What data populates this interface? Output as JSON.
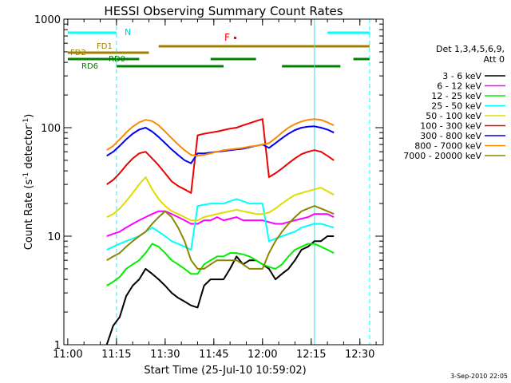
{
  "figure": {
    "title": "HESSI Observing Summary Count Rates",
    "xlabel": "Start Time (25-Jul-10 10:59:02)",
    "ylabel_main": "Count Rate (s",
    "ylabel_sup1": "-1",
    "ylabel_mid": " detector",
    "ylabel_sup2": "-1",
    "ylabel_end": ")",
    "footer_date": "3-Sep-2010 22:05",
    "legend_header_1": "Det 1,3,4,5,6,9,",
    "legend_header_2": "Att 0"
  },
  "flags": {
    "night_label": "N",
    "flare_label": "F",
    "fd1_label": "FD1",
    "fd2_label": "FD2",
    "rd0_label": "RD0",
    "rd6_label": "RD6"
  },
  "chart_data": {
    "type": "line",
    "title": "HESSI Observing Summary Count Rates",
    "xlabel": "Start Time (25-Jul-10 10:59:02)",
    "ylabel": "Count Rate (s-1 detector-1)",
    "y_scale": "log",
    "xlim_minutes": [
      10.98,
      12.62
    ],
    "ylim": [
      1,
      1000
    ],
    "x_ticks": [
      {
        "t": 11.0,
        "label": "11:00"
      },
      {
        "t": 11.25,
        "label": "11:15"
      },
      {
        "t": 11.5,
        "label": "11:30"
      },
      {
        "t": 11.75,
        "label": "11:45"
      },
      {
        "t": 12.0,
        "label": "12:00"
      },
      {
        "t": 12.25,
        "label": "12:15"
      },
      {
        "t": 12.5,
        "label": "12:30"
      }
    ],
    "y_ticks": [
      {
        "v": 1,
        "label": "1"
      },
      {
        "v": 10,
        "label": "10"
      },
      {
        "v": 100,
        "label": "100"
      },
      {
        "v": 1000,
        "label": "1000"
      }
    ],
    "grid": false,
    "legend_position": "right",
    "series": [
      {
        "name": "3 - 6 keV",
        "color": "#000000",
        "x": [
          "11:12",
          "11:14",
          "11:16",
          "11:18",
          "11:20",
          "11:22",
          "11:24",
          "11:26",
          "11:28",
          "11:30",
          "11:32",
          "11:34",
          "11:36",
          "11:38",
          "11:40",
          "11:42",
          "11:44",
          "11:46",
          "11:48",
          "11:50",
          "11:52",
          "11:54",
          "11:56",
          "11:58",
          "12:00",
          "12:02",
          "12:04",
          "12:06",
          "12:08",
          "12:10",
          "12:12",
          "12:14",
          "12:16",
          "12:18",
          "12:20",
          "12:22"
        ],
        "y": [
          1.0,
          1.5,
          1.8,
          2.8,
          3.5,
          4.0,
          5.0,
          4.5,
          4.0,
          3.5,
          3.0,
          2.7,
          2.5,
          2.3,
          2.2,
          3.5,
          4.0,
          4.0,
          4.0,
          5.0,
          6.5,
          5.5,
          6.0,
          6.0,
          5.5,
          5.0,
          4.0,
          4.5,
          5.0,
          6.0,
          7.5,
          8.0,
          9.0,
          9.0,
          10.0,
          10.0
        ]
      },
      {
        "name": "6 - 12 keV",
        "color": "#ff00ff",
        "x": [
          "11:12",
          "11:14",
          "11:16",
          "11:18",
          "11:20",
          "11:22",
          "11:24",
          "11:26",
          "11:28",
          "11:30",
          "11:32",
          "11:34",
          "11:36",
          "11:38",
          "11:40",
          "11:42",
          "11:44",
          "11:46",
          "11:48",
          "11:50",
          "11:52",
          "11:54",
          "11:56",
          "11:58",
          "12:00",
          "12:02",
          "12:04",
          "12:06",
          "12:08",
          "12:10",
          "12:12",
          "12:14",
          "12:16",
          "12:18",
          "12:20",
          "12:22"
        ],
        "y": [
          10.0,
          10.5,
          11.0,
          12.0,
          13.0,
          14.0,
          15.0,
          16.0,
          17.0,
          17.0,
          16.0,
          15.0,
          14.0,
          13.0,
          13.0,
          14.0,
          14.0,
          15.0,
          14.0,
          14.5,
          15.0,
          14.0,
          14.0,
          14.0,
          14.0,
          13.5,
          13.0,
          13.0,
          13.5,
          14.0,
          14.5,
          15.0,
          16.0,
          16.0,
          16.0,
          15.0
        ]
      },
      {
        "name": "12 - 25 keV",
        "color": "#00ee00",
        "x": [
          "11:12",
          "11:14",
          "11:16",
          "11:18",
          "11:20",
          "11:22",
          "11:24",
          "11:26",
          "11:28",
          "11:30",
          "11:32",
          "11:34",
          "11:36",
          "11:38",
          "11:40",
          "11:42",
          "11:44",
          "11:46",
          "11:48",
          "11:50",
          "11:52",
          "11:54",
          "11:56",
          "11:58",
          "12:00",
          "12:02",
          "12:04",
          "12:06",
          "12:08",
          "12:10",
          "12:12",
          "12:14",
          "12:16",
          "12:18",
          "12:20",
          "12:22"
        ],
        "y": [
          3.5,
          3.8,
          4.2,
          5.0,
          5.5,
          6.0,
          7.0,
          8.5,
          8.0,
          7.0,
          6.0,
          5.5,
          5.0,
          4.5,
          4.5,
          5.5,
          6.0,
          6.5,
          6.5,
          7.0,
          7.0,
          6.8,
          6.5,
          6.0,
          5.5,
          5.2,
          5.0,
          5.5,
          6.5,
          7.5,
          8.0,
          8.5,
          8.5,
          8.0,
          7.5,
          7.0
        ]
      },
      {
        "name": "25 - 50 keV",
        "color": "#00ffff",
        "x": [
          "11:12",
          "11:14",
          "11:16",
          "11:18",
          "11:20",
          "11:22",
          "11:24",
          "11:26",
          "11:28",
          "11:30",
          "11:32",
          "11:34",
          "11:36",
          "11:38",
          "11:40",
          "11:42",
          "11:44",
          "11:46",
          "11:48",
          "11:50",
          "11:52",
          "11:54",
          "11:56",
          "11:58",
          "12:00",
          "12:02",
          "12:04",
          "12:06",
          "12:08",
          "12:10",
          "12:12",
          "12:14",
          "12:16",
          "12:18",
          "12:20",
          "12:22"
        ],
        "y": [
          7.5,
          8.0,
          8.5,
          9.0,
          9.5,
          10.0,
          11.0,
          12.0,
          11.0,
          10.0,
          9.0,
          8.5,
          8.0,
          7.5,
          19.0,
          19.5,
          20.0,
          20.0,
          20.0,
          21.0,
          22.0,
          21.0,
          20.0,
          20.0,
          20.0,
          9.0,
          9.5,
          10.0,
          10.5,
          11.0,
          12.0,
          12.5,
          13.0,
          13.0,
          12.5,
          12.0
        ]
      },
      {
        "name": "50 - 100 keV",
        "color": "#dddd00",
        "x": [
          "11:12",
          "11:14",
          "11:16",
          "11:18",
          "11:20",
          "11:22",
          "11:24",
          "11:26",
          "11:28",
          "11:30",
          "11:32",
          "11:34",
          "11:36",
          "11:38",
          "11:40",
          "11:42",
          "11:44",
          "11:46",
          "11:48",
          "11:50",
          "11:52",
          "11:54",
          "11:56",
          "11:58",
          "12:00",
          "12:02",
          "12:04",
          "12:06",
          "12:08",
          "12:10",
          "12:12",
          "12:14",
          "12:16",
          "12:18",
          "12:20",
          "12:22"
        ],
        "y": [
          15.0,
          16.0,
          18.0,
          21.0,
          25.0,
          30.0,
          35.0,
          27.0,
          22.0,
          19.0,
          17.0,
          16.0,
          15.0,
          14.0,
          14.0,
          15.0,
          15.5,
          16.0,
          16.5,
          17.0,
          17.5,
          17.0,
          16.5,
          16.0,
          16.0,
          16.5,
          18.0,
          20.0,
          22.0,
          24.0,
          25.0,
          26.0,
          27.0,
          28.0,
          26.0,
          24.0
        ]
      },
      {
        "name": "100 - 300 keV",
        "color": "#ee0000",
        "x": [
          "11:12",
          "11:14",
          "11:16",
          "11:18",
          "11:20",
          "11:22",
          "11:24",
          "11:26",
          "11:28",
          "11:30",
          "11:32",
          "11:34",
          "11:36",
          "11:38",
          "11:40",
          "11:42",
          "11:44",
          "11:46",
          "11:48",
          "11:50",
          "11:52",
          "11:54",
          "11:56",
          "11:58",
          "12:00",
          "12:02",
          "12:04",
          "12:06",
          "12:08",
          "12:10",
          "12:12",
          "12:14",
          "12:16",
          "12:18",
          "12:20",
          "12:22"
        ],
        "y": [
          30.0,
          33.0,
          38.0,
          45.0,
          52.0,
          58.0,
          60.0,
          52.0,
          45.0,
          38.0,
          32.0,
          29.0,
          27.0,
          25.0,
          85.0,
          88.0,
          90.0,
          92.0,
          95.0,
          98.0,
          100.0,
          105.0,
          110.0,
          115.0,
          120.0,
          35.0,
          38.0,
          42.0,
          47.0,
          52.0,
          57.0,
          60.0,
          62.0,
          60.0,
          55.0,
          50.0
        ]
      },
      {
        "name": "300 - 800 keV",
        "color": "#0000ee",
        "x": [
          "11:12",
          "11:14",
          "11:16",
          "11:18",
          "11:20",
          "11:22",
          "11:24",
          "11:26",
          "11:28",
          "11:30",
          "11:32",
          "11:34",
          "11:36",
          "11:38",
          "11:40",
          "11:42",
          "11:44",
          "11:46",
          "11:48",
          "11:50",
          "11:52",
          "11:54",
          "11:56",
          "11:58",
          "12:00",
          "12:02",
          "12:04",
          "12:06",
          "12:08",
          "12:10",
          "12:12",
          "12:14",
          "12:16",
          "12:18",
          "12:20",
          "12:22"
        ],
        "y": [
          55.0,
          60.0,
          68.0,
          78.0,
          88.0,
          96.0,
          100.0,
          92.0,
          82.0,
          72.0,
          63.0,
          56.0,
          50.0,
          47.0,
          58.0,
          58.0,
          59.0,
          60.0,
          61.0,
          62.0,
          63.0,
          64.0,
          66.0,
          68.0,
          70.0,
          65.0,
          72.0,
          80.0,
          88.0,
          95.0,
          100.0,
          102.0,
          103.0,
          100.0,
          96.0,
          90.0
        ]
      },
      {
        "name": "800 - 7000 keV",
        "color": "#ff8800",
        "x": [
          "11:12",
          "11:14",
          "11:16",
          "11:18",
          "11:20",
          "11:22",
          "11:24",
          "11:26",
          "11:28",
          "11:30",
          "11:32",
          "11:34",
          "11:36",
          "11:38",
          "11:40",
          "11:42",
          "11:44",
          "11:46",
          "11:48",
          "11:50",
          "11:52",
          "11:54",
          "11:56",
          "11:58",
          "12:00",
          "12:02",
          "12:04",
          "12:06",
          "12:08",
          "12:10",
          "12:12",
          "12:14",
          "12:16",
          "12:18",
          "12:20",
          "12:22"
        ],
        "y": [
          62.0,
          68.0,
          78.0,
          90.0,
          102.0,
          112.0,
          118.0,
          115.0,
          105.0,
          92.0,
          80.0,
          70.0,
          62.0,
          56.0,
          55.0,
          56.0,
          58.0,
          60.0,
          62.0,
          63.0,
          64.0,
          65.0,
          67.0,
          68.0,
          70.0,
          72.0,
          80.0,
          90.0,
          100.0,
          108.0,
          114.0,
          118.0,
          120.0,
          118.0,
          112.0,
          105.0
        ]
      },
      {
        "name": "7000 - 20000 keV",
        "color": "#888800",
        "x": [
          "11:12",
          "11:14",
          "11:16",
          "11:18",
          "11:20",
          "11:22",
          "11:24",
          "11:26",
          "11:28",
          "11:30",
          "11:32",
          "11:34",
          "11:36",
          "11:38",
          "11:40",
          "11:42",
          "11:44",
          "11:46",
          "11:48",
          "11:50",
          "11:52",
          "11:54",
          "11:56",
          "11:58",
          "12:00",
          "12:02",
          "12:04",
          "12:06",
          "12:08",
          "12:10",
          "12:12",
          "12:14",
          "12:16",
          "12:18",
          "12:20",
          "12:22"
        ],
        "y": [
          6.0,
          6.5,
          7.0,
          8.0,
          9.0,
          10.0,
          11.0,
          13.0,
          15.0,
          17.0,
          15.0,
          12.0,
          9.0,
          6.0,
          5.0,
          5.0,
          5.5,
          6.0,
          6.0,
          6.0,
          6.0,
          5.5,
          5.0,
          5.0,
          5.0,
          7.0,
          9.0,
          11.0,
          13.0,
          15.0,
          17.0,
          18.0,
          19.0,
          18.0,
          17.0,
          16.0
        ]
      }
    ],
    "flag_bars": [
      {
        "label": "N",
        "color": "#00ffff",
        "segments": [
          [
            "11:00",
            "11:15"
          ],
          [
            "12:20",
            "12:33"
          ]
        ]
      },
      {
        "label": "FD1",
        "color": "#a08000",
        "segments": [
          [
            "11:28",
            "12:33"
          ]
        ]
      },
      {
        "label": "FD2",
        "color": "#a08000",
        "segments": [
          [
            "11:00",
            "11:25"
          ]
        ]
      },
      {
        "label": "RD0",
        "color": "#008000",
        "segments": [
          [
            "11:00",
            "11:22"
          ],
          [
            "11:44",
            "11:58"
          ],
          [
            "12:28",
            "12:33"
          ]
        ]
      },
      {
        "label": "RD6",
        "color": "#008000",
        "segments": [
          [
            "11:15",
            "11:48"
          ],
          [
            "12:06",
            "12:24"
          ]
        ]
      },
      {
        "label": "F",
        "color": "#ff0000",
        "segments": [
          [
            "11:55",
            "11:56"
          ]
        ]
      }
    ],
    "vertical_markers": [
      {
        "t": "11:15",
        "color": "#00ffff",
        "style": "dashed"
      },
      {
        "t": "12:16",
        "color": "#00ffff",
        "style": "solid"
      },
      {
        "t": "12:33",
        "color": "#00ffff",
        "style": "dashed"
      }
    ]
  }
}
